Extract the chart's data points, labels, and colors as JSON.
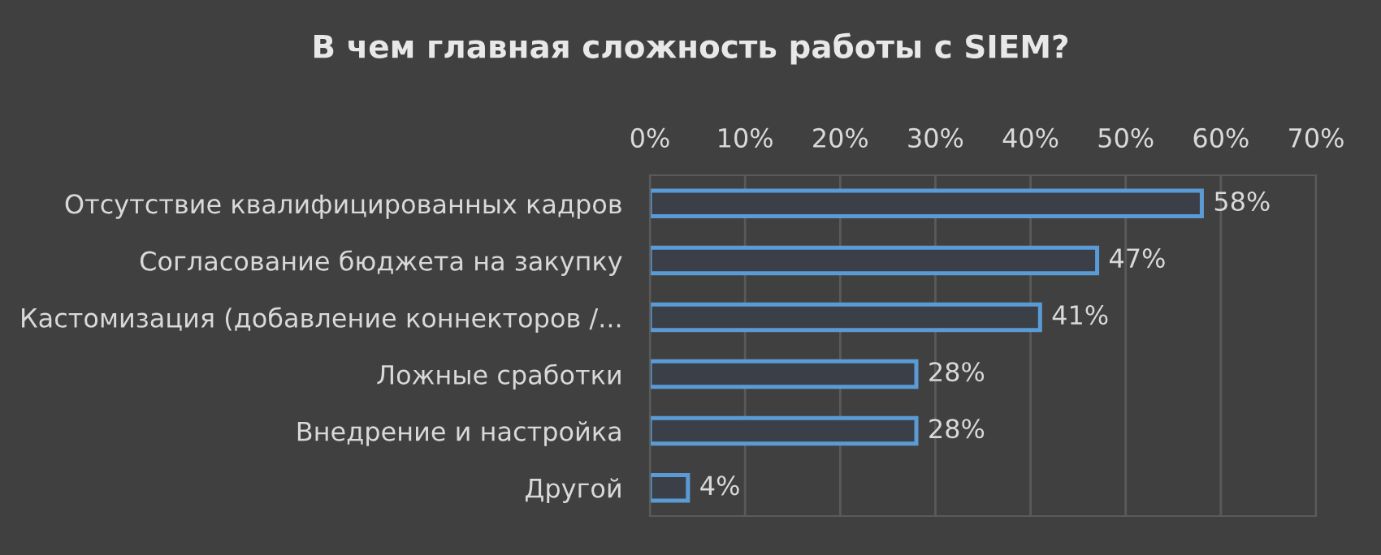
{
  "chart_data": {
    "type": "bar",
    "orientation": "horizontal",
    "title": "В чем главная сложность работы с SIEM?",
    "categories": [
      "Отсутствие квалифицированных кадров",
      "Согласование бюджета на закупку",
      "Кастомизация (добавление коннекторов /...",
      "Ложные сработки",
      "Внедрение и настройка",
      "Другой"
    ],
    "values": [
      58,
      47,
      41,
      28,
      28,
      4
    ],
    "value_labels": [
      "58%",
      "47%",
      "41%",
      "28%",
      "28%",
      "4%"
    ],
    "color": "#5b9bd5",
    "xlim": [
      0,
      70
    ],
    "xticks": [
      {
        "value": 0,
        "label": "0%"
      },
      {
        "value": 10,
        "label": "10%"
      },
      {
        "value": 20,
        "label": "20%"
      },
      {
        "value": 30,
        "label": "30%"
      },
      {
        "value": 40,
        "label": "40%"
      },
      {
        "value": 50,
        "label": "50%"
      },
      {
        "value": 60,
        "label": "60%"
      },
      {
        "value": 70,
        "label": "70%"
      }
    ],
    "grid": "x"
  }
}
